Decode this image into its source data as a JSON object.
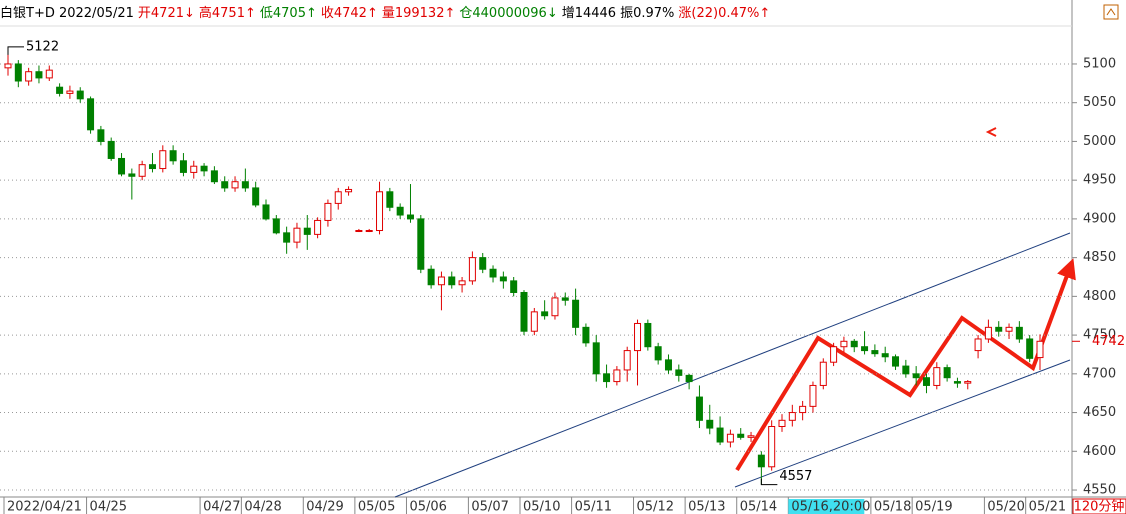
{
  "chart_data": {
    "type": "candlestick",
    "header": [
      {
        "text": "白银T+D 2022/05/21",
        "color": "#000000"
      },
      {
        "text": "开4721↓",
        "color": "#e00000"
      },
      {
        "text": "高4751↑",
        "color": "#e00000"
      },
      {
        "text": "低4705↑",
        "color": "#008000"
      },
      {
        "text": "收4742↑",
        "color": "#e00000"
      },
      {
        "text": "量199132↑",
        "color": "#e00000"
      },
      {
        "text": "仓440000096↓",
        "color": "#008000"
      },
      {
        "text": "增14446",
        "color": "#000000"
      },
      {
        "text": "振0.97%",
        "color": "#000000"
      },
      {
        "text": "涨(22)0.47%↑",
        "color": "#e00000"
      }
    ],
    "period": "120分钟",
    "up_color": "#e00000",
    "down_color": "#008000",
    "candles": [
      [
        5095,
        5122,
        5085,
        5100
      ],
      [
        5100,
        5105,
        5070,
        5078
      ],
      [
        5078,
        5095,
        5072,
        5090
      ],
      [
        5090,
        5098,
        5075,
        5082
      ],
      [
        5082,
        5098,
        5078,
        5092
      ],
      [
        5070,
        5075,
        5058,
        5062
      ],
      [
        5062,
        5072,
        5055,
        5065
      ],
      [
        5065,
        5070,
        5050,
        5055
      ],
      [
        5055,
        5058,
        5010,
        5015
      ],
      [
        5015,
        5020,
        4995,
        5000
      ],
      [
        5000,
        5005,
        4975,
        4978
      ],
      [
        4978,
        4985,
        4955,
        4958
      ],
      [
        4958,
        4965,
        4925,
        4955
      ],
      [
        4955,
        4975,
        4950,
        4970
      ],
      [
        4970,
        4985,
        4960,
        4965
      ],
      [
        4965,
        4995,
        4960,
        4988
      ],
      [
        4988,
        4995,
        4970,
        4975
      ],
      [
        4975,
        4985,
        4955,
        4960
      ],
      [
        4960,
        4975,
        4952,
        4968
      ],
      [
        4968,
        4972,
        4955,
        4962
      ],
      [
        4962,
        4968,
        4945,
        4948
      ],
      [
        4948,
        4955,
        4935,
        4940
      ],
      [
        4940,
        4955,
        4935,
        4948
      ],
      [
        4948,
        4965,
        4935,
        4940
      ],
      [
        4940,
        4948,
        4915,
        4918
      ],
      [
        4918,
        4925,
        4898,
        4900
      ],
      [
        4900,
        4905,
        4880,
        4882
      ],
      [
        4882,
        4890,
        4855,
        4870
      ],
      [
        4870,
        4895,
        4862,
        4888
      ],
      [
        4888,
        4905,
        4860,
        4880
      ],
      [
        4880,
        4902,
        4875,
        4898
      ],
      [
        4898,
        4925,
        4890,
        4920
      ],
      [
        4920,
        4940,
        4912,
        4935
      ],
      [
        4935,
        4942,
        4930,
        4938
      ],
      [
        4885,
        4887,
        4883,
        4885
      ],
      [
        4885,
        4887,
        4883,
        4885
      ],
      [
        4885,
        4948,
        4880,
        4935
      ],
      [
        4935,
        4940,
        4910,
        4915
      ],
      [
        4915,
        4920,
        4900,
        4905
      ],
      [
        4905,
        4945,
        4895,
        4900
      ],
      [
        4900,
        4905,
        4830,
        4835
      ],
      [
        4835,
        4840,
        4810,
        4815
      ],
      [
        4815,
        4832,
        4782,
        4825
      ],
      [
        4825,
        4832,
        4810,
        4815
      ],
      [
        4815,
        4825,
        4805,
        4820
      ],
      [
        4820,
        4858,
        4815,
        4850
      ],
      [
        4850,
        4856,
        4830,
        4835
      ],
      [
        4835,
        4840,
        4818,
        4825
      ],
      [
        4825,
        4832,
        4810,
        4820
      ],
      [
        4820,
        4825,
        4800,
        4805
      ],
      [
        4805,
        4808,
        4750,
        4755
      ],
      [
        4755,
        4785,
        4750,
        4780
      ],
      [
        4780,
        4795,
        4770,
        4775
      ],
      [
        4775,
        4805,
        4770,
        4798
      ],
      [
        4798,
        4805,
        4788,
        4795
      ],
      [
        4795,
        4810,
        4750,
        4760
      ],
      [
        4760,
        4765,
        4735,
        4740
      ],
      [
        4740,
        4750,
        4690,
        4700
      ],
      [
        4700,
        4712,
        4682,
        4690
      ],
      [
        4690,
        4710,
        4685,
        4705
      ],
      [
        4705,
        4735,
        4690,
        4730
      ],
      [
        4730,
        4770,
        4685,
        4765
      ],
      [
        4765,
        4770,
        4730,
        4735
      ],
      [
        4735,
        4740,
        4712,
        4718
      ],
      [
        4718,
        4725,
        4700,
        4705
      ],
      [
        4705,
        4712,
        4690,
        4698
      ],
      [
        4698,
        4700,
        4680,
        4690
      ],
      [
        4670,
        4685,
        4630,
        4640
      ],
      [
        4640,
        4660,
        4622,
        4630
      ],
      [
        4630,
        4645,
        4608,
        4612
      ],
      [
        4612,
        4628,
        4605,
        4622
      ],
      [
        4622,
        4630,
        4615,
        4618
      ],
      [
        4618,
        4625,
        4612,
        4620
      ],
      [
        4595,
        4600,
        4557,
        4580
      ],
      [
        4580,
        4640,
        4575,
        4632
      ],
      [
        4632,
        4648,
        4625,
        4640
      ],
      [
        4640,
        4660,
        4632,
        4650
      ],
      [
        4650,
        4665,
        4640,
        4658
      ],
      [
        4658,
        4690,
        4650,
        4685
      ],
      [
        4685,
        4720,
        4680,
        4715
      ],
      [
        4715,
        4740,
        4710,
        4735
      ],
      [
        4735,
        4748,
        4728,
        4742
      ],
      [
        4742,
        4745,
        4728,
        4735
      ],
      [
        4735,
        4755,
        4725,
        4730
      ],
      [
        4730,
        4738,
        4722,
        4726
      ],
      [
        4726,
        4735,
        4715,
        4722
      ],
      [
        4722,
        4725,
        4705,
        4710
      ],
      [
        4710,
        4718,
        4695,
        4700
      ],
      [
        4700,
        4710,
        4685,
        4695
      ],
      [
        4695,
        4700,
        4675,
        4685
      ],
      [
        4685,
        4715,
        4680,
        4708
      ],
      [
        4708,
        4712,
        4690,
        4695
      ],
      [
        4690,
        4695,
        4682,
        4688
      ],
      [
        4688,
        4692,
        4680,
        4690
      ],
      [
        4730,
        4750,
        4720,
        4745
      ],
      [
        4745,
        4770,
        4740,
        4760
      ],
      [
        4760,
        4768,
        4748,
        4755
      ],
      [
        4755,
        4765,
        4745,
        4760
      ],
      [
        4760,
        4768,
        4740,
        4745
      ],
      [
        4745,
        4750,
        4715,
        4720
      ],
      [
        4721,
        4751,
        4705,
        4742
      ]
    ],
    "xticks": [
      {
        "value": 0,
        "label": "2022/04/21"
      },
      {
        "value": 8,
        "label": "04/25"
      },
      {
        "value": 19,
        "label": "04/27"
      },
      {
        "value": 23,
        "label": "04/28"
      },
      {
        "value": 29,
        "label": "04/29"
      },
      {
        "value": 34,
        "label": "05/05"
      },
      {
        "value": 39,
        "label": "05/06"
      },
      {
        "value": 45,
        "label": "05/07"
      },
      {
        "value": 50,
        "label": "05/10"
      },
      {
        "value": 55,
        "label": "05/11"
      },
      {
        "value": 61,
        "label": "05/12"
      },
      {
        "value": 66,
        "label": "05/13"
      },
      {
        "value": 71,
        "label": "05/14"
      },
      {
        "value": 76,
        "label": "05/16,20:00"
      },
      {
        "value": 84,
        "label": "05/18"
      },
      {
        "value": 88,
        "label": "05/19"
      },
      {
        "value": 95,
        "label": "05/20"
      },
      {
        "value": 99,
        "label": "05/21"
      }
    ],
    "highlight_tick": 13,
    "ylim": [
      4541,
      5149
    ],
    "yticks": [
      4550,
      4600,
      4650,
      4700,
      4750,
      4800,
      4850,
      4900,
      4950,
      5000,
      5050,
      5100
    ],
    "grid": true,
    "high_mark": 5122,
    "low_mark": 4557,
    "last_price": 4742
  }
}
